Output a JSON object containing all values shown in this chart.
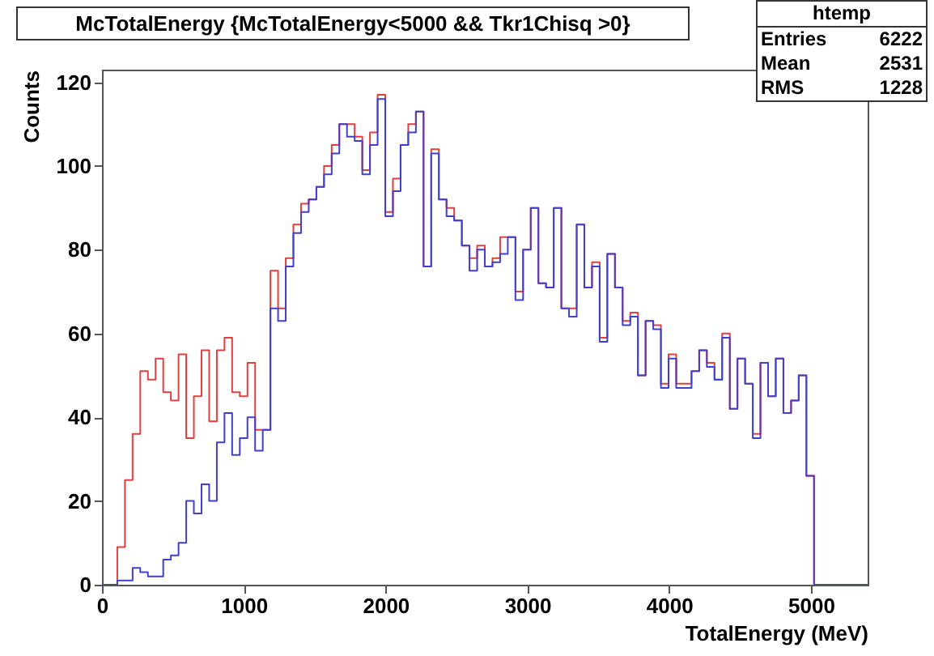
{
  "chart_data": {
    "type": "histogram",
    "title": "McTotalEnergy {McTotalEnergy<5000 && Tkr1Chisq >0}",
    "xlabel": "TotalEnergy (MeV)",
    "ylabel": "Counts",
    "bins": [
      0,
      54,
      108,
      162,
      216,
      270,
      324,
      378,
      432,
      486,
      540,
      594,
      648,
      702,
      756,
      810,
      864,
      918,
      972,
      1026,
      1080,
      1134,
      1188,
      1242,
      1296,
      1350,
      1404,
      1458,
      1512,
      1566,
      1620,
      1674,
      1728,
      1782,
      1836,
      1890,
      1944,
      1998,
      2052,
      2106,
      2160,
      2214,
      2268,
      2322,
      2376,
      2430,
      2484,
      2538,
      2592,
      2646,
      2700,
      2754,
      2808,
      2862,
      2916,
      2970,
      3024,
      3078,
      3132,
      3186,
      3240,
      3294,
      3348,
      3402,
      3456,
      3510,
      3564,
      3618,
      3672,
      3726,
      3780,
      3834,
      3888,
      3942,
      3996,
      4050,
      4104,
      4158,
      4212,
      4266,
      4320,
      4374,
      4428,
      4482,
      4536,
      4590,
      4644,
      4698,
      4752,
      4806,
      4860,
      4914,
      4968,
      5022,
      5076,
      5130,
      5184,
      5238,
      5292,
      5346,
      5400
    ],
    "series": [
      {
        "color": "#e04040",
        "values": [
          0,
          0,
          9,
          25,
          36,
          51,
          49,
          54,
          46,
          44,
          55,
          35,
          45,
          56,
          39,
          56,
          59,
          46,
          45,
          53,
          37,
          37,
          75,
          66,
          78,
          86,
          91,
          92,
          95,
          100,
          105,
          110,
          110,
          107,
          99,
          108,
          117,
          89,
          97,
          105,
          110,
          113,
          76,
          104,
          92,
          90,
          87,
          81,
          78,
          81,
          76,
          78,
          83,
          83,
          70,
          80,
          90,
          72,
          71,
          90,
          66,
          66,
          86,
          71,
          77,
          59,
          79,
          71,
          63,
          65,
          50,
          63,
          62,
          48,
          55,
          48,
          48,
          51,
          56,
          53,
          49,
          60,
          42,
          54,
          48,
          36,
          53,
          45,
          54,
          41,
          44,
          50,
          26,
          0,
          0,
          0,
          0,
          0,
          0,
          0
        ]
      },
      {
        "color": "#4040d0",
        "values": [
          0,
          0,
          1,
          1,
          4,
          3,
          2,
          2,
          6,
          7,
          10,
          20,
          17,
          24,
          20,
          34,
          41,
          31,
          35,
          40,
          32,
          37,
          66,
          63,
          76,
          84,
          89,
          92,
          95,
          98,
          103,
          110,
          107,
          106,
          98,
          105,
          116,
          88,
          94,
          105,
          108,
          113,
          76,
          103,
          92,
          88,
          87,
          81,
          75,
          80,
          76,
          77,
          79,
          83,
          68,
          80,
          90,
          72,
          71,
          90,
          66,
          64,
          86,
          71,
          76,
          58,
          79,
          71,
          62,
          64,
          50,
          63,
          61,
          47,
          54,
          47,
          47,
          51,
          56,
          52,
          49,
          59,
          42,
          54,
          48,
          35,
          53,
          45,
          54,
          41,
          44,
          50,
          26,
          0,
          0,
          0,
          0,
          0,
          0,
          0
        ]
      }
    ],
    "xlim": [
      0,
      5400
    ],
    "xticks": [
      0,
      1000,
      2000,
      3000,
      4000,
      5000
    ],
    "ylim": [
      0,
      123
    ],
    "yticks": [
      0,
      20,
      40,
      60,
      80,
      100,
      120
    ],
    "grid": false,
    "annotations": [
      "htemp",
      "Entries",
      "6222",
      "Mean",
      "2531",
      "RMS",
      "1228"
    ]
  }
}
